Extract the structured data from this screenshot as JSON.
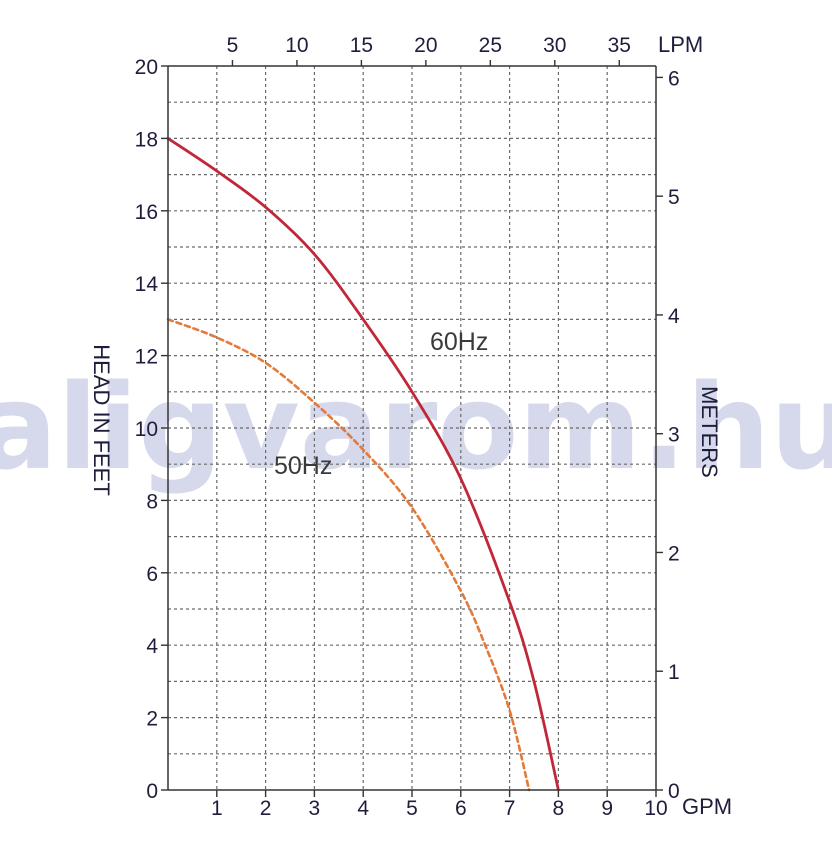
{
  "chart_data": {
    "type": "line",
    "watermark": "aligvarom.hu",
    "x_bottom": {
      "label": "GPM",
      "range": [
        0,
        10
      ],
      "ticks": [
        1,
        2,
        3,
        4,
        5,
        6,
        7,
        8,
        9,
        10
      ]
    },
    "x_top": {
      "label": "LPM",
      "ticks": [
        5,
        10,
        15,
        20,
        25,
        30,
        35
      ]
    },
    "y_left": {
      "label": "HEAD IN FEET",
      "range": [
        0,
        20
      ],
      "ticks": [
        0,
        2,
        4,
        6,
        8,
        10,
        12,
        14,
        16,
        18,
        20
      ]
    },
    "y_right": {
      "label": "METERS",
      "ticks": [
        0,
        1,
        2,
        3,
        4,
        5,
        6
      ]
    },
    "grid": true,
    "series": [
      {
        "name": "60Hz",
        "color": "#c0283a",
        "style": "solid",
        "x": [
          0,
          1,
          2,
          3,
          4,
          5,
          6,
          7,
          7.5,
          8
        ],
        "y": [
          18,
          17.1,
          16.1,
          14.8,
          13.0,
          11.0,
          8.6,
          5.2,
          3.0,
          0
        ]
      },
      {
        "name": "50Hz",
        "color": "#e4793a",
        "style": "dashed",
        "x": [
          0,
          1,
          2,
          3,
          4,
          5,
          6,
          6.5,
          7,
          7.4
        ],
        "y": [
          13,
          12.5,
          11.8,
          10.7,
          9.4,
          7.8,
          5.5,
          4.0,
          2.2,
          0
        ]
      }
    ]
  }
}
